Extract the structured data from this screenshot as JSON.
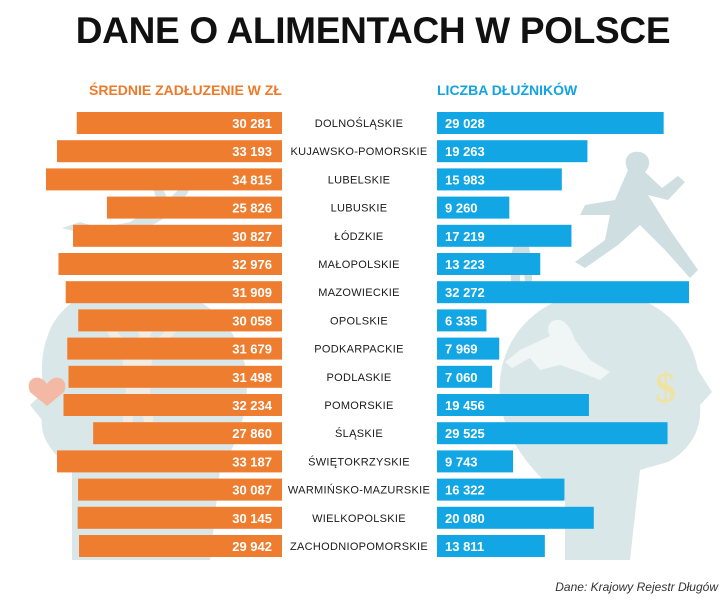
{
  "title": "DANE O ALIMENTACH W POLSCE",
  "source": "Dane: Krajowy Rejestr Długów",
  "colors": {
    "left": "#ee7d2f",
    "right": "#12a6e4",
    "silhouette": "#cfe0e3"
  },
  "chart_data": {
    "type": "bar",
    "title": "DANE O ALIMENTACH W POLSCE",
    "categories": [
      "DOLNOŚLĄSKIE",
      "KUJAWSKO-POMORSKIE",
      "LUBELSKIE",
      "LUBUSKIE",
      "ŁÓDZKIE",
      "MAŁOPOLSKIE",
      "MAZOWIECKIE",
      "OPOLSKIE",
      "PODKARPACKIE",
      "PODLASKIE",
      "POMORSKIE",
      "ŚLĄSKIE",
      "ŚWIĘTOKRZYSKIE",
      "WARMIŃSKO-MAZURSKIE",
      "WIELKOPOLSKIE",
      "ZACHODNIOPOMORSKIE"
    ],
    "series": [
      {
        "name": "ŚREDNIE ZADŁUZENIE W ZŁ",
        "values": [
          30281,
          33193,
          34815,
          25826,
          30827,
          32976,
          31909,
          30058,
          31679,
          31498,
          32234,
          27860,
          33187,
          30087,
          30145,
          29942
        ],
        "labels": [
          "30 281",
          "33 193",
          "34 815",
          "25 826",
          "30 827",
          "32 976",
          "31 909",
          "30 058",
          "31 679",
          "31 498",
          "32 234",
          "27 860",
          "33 187",
          "30 087",
          "30 145",
          "29 942"
        ]
      },
      {
        "name": "LICZBA DŁUŻNIKÓW",
        "values": [
          29028,
          19263,
          15983,
          9260,
          17219,
          13223,
          32272,
          6335,
          7969,
          7060,
          19456,
          29525,
          9743,
          16322,
          20080,
          13811
        ],
        "labels": [
          "29 028",
          "19 263",
          "15 983",
          "9 260",
          "17 219",
          "13 223",
          "32 272",
          "6 335",
          "7 969",
          "7 060",
          "19 456",
          "29 525",
          "9 743",
          "16 322",
          "20 080",
          "13 811"
        ]
      }
    ]
  }
}
